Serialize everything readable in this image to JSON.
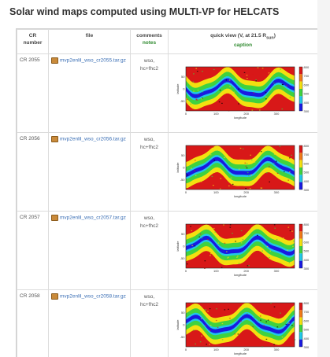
{
  "page": {
    "title": "Solar wind maps computed using MULTI-VP for HELCATS"
  },
  "table": {
    "headers": {
      "cr": "CR number",
      "file": "file",
      "comments": "comments",
      "comments_sub": "notes",
      "quick": "quick view (V, at 21.5 R",
      "quick_subscript": "sun",
      "quick_close": ")",
      "quick_sub": "caption"
    },
    "rows": [
      {
        "cr": "CR 2055",
        "file": "mvp2enlil_wso_cr2055.tar.gz",
        "comments_line1": "wso,",
        "comments_line2": "hc+fhc2"
      },
      {
        "cr": "CR 2056",
        "file": "mvp2enlil_wso_cr2056.tar.gz",
        "comments_line1": "wso,",
        "comments_line2": "hc+fhc2"
      },
      {
        "cr": "CR 2057",
        "file": "mvp2enlil_wso_cr2057.tar.gz",
        "comments_line1": "wso,",
        "comments_line2": "hc+fhc2"
      },
      {
        "cr": "CR 2058",
        "file": "mvp2enlil_wso_cr2058.tar.gz",
        "comments_line1": "wso,",
        "comments_line2": "hc+fhc2"
      }
    ]
  },
  "map": {
    "xlabel": "longitude",
    "ylabel": "latitude",
    "xticks": [
      "0",
      "100",
      "200",
      "300"
    ],
    "yticks": [
      "50",
      "0",
      "-50"
    ],
    "colorbar_labels": [
      "800",
      "700",
      "600",
      "500",
      "400",
      "300"
    ],
    "colors": {
      "fast": "#d81818",
      "band": "#f3e010",
      "green": "#3fd23f",
      "slow": "#1a1ae0",
      "cyan": "#20c8e8"
    }
  }
}
